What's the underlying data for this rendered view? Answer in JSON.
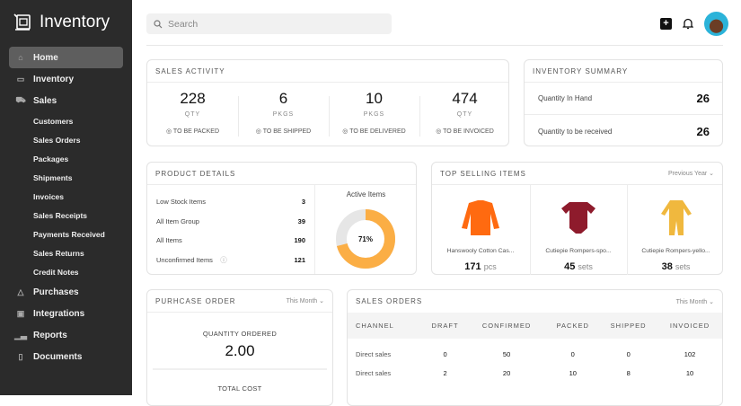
{
  "sidebar": {
    "brand": "Inventory",
    "items": [
      {
        "label": "Home",
        "icon": "home-icon",
        "active": true
      },
      {
        "label": "Inventory",
        "icon": "box-icon"
      },
      {
        "label": "Sales",
        "icon": "cart-icon"
      },
      {
        "label": "Customers",
        "sub": true
      },
      {
        "label": "Sales Orders",
        "sub": true
      },
      {
        "label": "Packages",
        "sub": true
      },
      {
        "label": "Shipments",
        "sub": true
      },
      {
        "label": "Invoices",
        "sub": true
      },
      {
        "label": "Sales Receipts",
        "sub": true
      },
      {
        "label": "Payments Received",
        "sub": true
      },
      {
        "label": "Sales Returns",
        "sub": true
      },
      {
        "label": "Credit Notes",
        "sub": true
      },
      {
        "label": "Purchases",
        "icon": "bag-icon"
      },
      {
        "label": "Integrations",
        "icon": "integrations-icon"
      },
      {
        "label": "Reports",
        "icon": "chart-icon"
      },
      {
        "label": "Documents",
        "icon": "document-icon"
      }
    ]
  },
  "header": {
    "search_placeholder": "Search"
  },
  "sales_activity": {
    "title": "SALES ACTIVITY",
    "stats": [
      {
        "value": "228",
        "unit": "QTY",
        "label": "TO BE PACKED"
      },
      {
        "value": "6",
        "unit": "PKGS",
        "label": "TO BE SHIPPED"
      },
      {
        "value": "10",
        "unit": "PKGS",
        "label": "TO BE DELIVERED"
      },
      {
        "value": "474",
        "unit": "QTY",
        "label": "TO BE INVOICED"
      }
    ]
  },
  "inventory_summary": {
    "title": "INVENTORY SUMMARY",
    "rows": [
      {
        "label": "Quantity In Hand",
        "value": "26"
      },
      {
        "label": "Quantity to be received",
        "value": "26"
      }
    ]
  },
  "product_details": {
    "title": "PRODUCT DETAILS",
    "rows": [
      {
        "label": "Low Stock Items",
        "value": "3"
      },
      {
        "label": "All Item Group",
        "value": "39"
      },
      {
        "label": "All Items",
        "value": "190"
      },
      {
        "label": "Unconfirmed Items",
        "value": "121"
      }
    ],
    "chart_title": "Active Items",
    "active_percent": 71,
    "active_label": "71%",
    "colors": {
      "active": "#fbae45",
      "rest": "#e6e6e6"
    }
  },
  "top_selling": {
    "title": "TOP SELLING ITEMS",
    "period": "Previous Year",
    "items": [
      {
        "name": "Hanswooly Cotton Cas...",
        "qty": "171",
        "unit": "pcs",
        "color": "#ff6a10"
      },
      {
        "name": "Cutiepie Rompers-spo...",
        "qty": "45",
        "unit": "sets",
        "color": "#8e1b2c"
      },
      {
        "name": "Cutiepie Rompers-yello...",
        "qty": "38",
        "unit": "sets",
        "color": "#f0b83e"
      }
    ]
  },
  "purchase_order": {
    "title": "PURHCASE ORDER",
    "period": "This Month",
    "qty_label": "QUANTITY ORDERED",
    "qty_value": "2.00",
    "cost_label": "TOTAL COST"
  },
  "sales_orders": {
    "title": "SALES ORDERS",
    "period": "This Month",
    "columns": [
      "CHANNEL",
      "DRAFT",
      "CONFIRMED",
      "PACKED",
      "SHIPPED",
      "INVOICED"
    ],
    "rows": [
      [
        "Direct sales",
        "0",
        "50",
        "0",
        "0",
        "102"
      ],
      [
        "Direct sales",
        "2",
        "20",
        "10",
        "8",
        "10"
      ]
    ]
  }
}
